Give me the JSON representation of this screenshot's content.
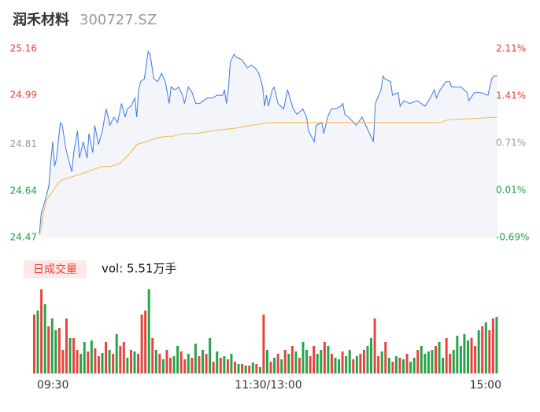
{
  "chart_data": [
    {
      "type": "line",
      "title": "润禾材料",
      "subtitle": "300727.SZ",
      "xlim": [
        0,
        240
      ],
      "xticks": [
        {
          "value": 0,
          "label": "09:30"
        },
        {
          "value": 120,
          "label": "11:30/13:00"
        },
        {
          "value": 240,
          "label": "15:00"
        }
      ],
      "ylim": [
        24.47,
        25.16
      ],
      "yticks": [
        25.16,
        24.99,
        24.81,
        24.64,
        24.47
      ],
      "y2lim": [
        -0.69,
        2.11
      ],
      "y2ticks": [
        {
          "value": 2.11,
          "label": "2.11%"
        },
        {
          "value": 1.41,
          "label": "1.41%"
        },
        {
          "value": 0.71,
          "label": "0.71%"
        },
        {
          "value": 0.01,
          "label": "0.01%"
        },
        {
          "value": -0.69,
          "label": "-0.69%"
        }
      ],
      "tick_colors": [
        "#e8433b",
        "#e8433b",
        "#999999",
        "#1f9e45",
        "#1f9e45"
      ],
      "area_color": "#f3f5fb",
      "series": [
        {
          "color": "#3c78e2",
          "x": [
            0,
            1,
            2,
            4,
            5,
            6,
            7,
            8,
            9,
            11,
            12,
            14,
            17,
            18,
            20,
            21,
            23,
            25,
            26,
            28,
            29,
            31,
            33,
            35,
            37,
            39,
            41,
            43,
            45,
            46,
            48,
            50,
            51,
            52,
            53,
            55,
            57,
            58,
            60,
            62,
            64,
            66,
            68,
            69,
            71,
            73,
            75,
            76,
            78,
            80,
            82,
            84,
            86,
            88,
            90,
            91,
            93,
            96,
            97,
            98,
            99,
            100,
            102,
            103,
            106,
            109,
            111,
            113,
            115,
            117,
            118,
            119,
            120,
            122,
            123,
            125,
            128,
            130,
            133,
            135,
            138,
            140,
            141,
            144,
            145,
            148,
            149,
            151,
            153,
            155,
            158,
            159,
            160,
            162,
            166,
            169,
            171,
            175,
            176,
            179,
            180,
            181,
            184,
            185,
            188,
            189,
            191,
            194,
            198,
            202,
            204,
            207,
            208,
            210,
            213,
            215,
            216,
            219,
            221,
            224,
            225,
            228,
            231,
            235,
            237,
            238,
            240
          ],
          "values": [
            24.48,
            24.56,
            24.58,
            24.63,
            24.66,
            24.75,
            24.82,
            24.73,
            24.76,
            24.89,
            24.88,
            24.79,
            24.71,
            24.78,
            24.86,
            24.76,
            24.82,
            24.76,
            24.85,
            24.78,
            24.88,
            24.81,
            24.86,
            24.94,
            24.88,
            24.91,
            24.89,
            24.96,
            24.91,
            24.94,
            24.95,
            24.98,
            24.91,
            25.01,
            25.04,
            25.05,
            25.15,
            25.14,
            25.05,
            25.04,
            25.07,
            25.04,
            24.96,
            25.02,
            25.01,
            25.02,
            24.99,
            24.96,
            25.02,
            25.0,
            24.96,
            24.96,
            24.97,
            24.98,
            24.98,
            24.98,
            24.99,
            24.99,
            25.01,
            24.96,
            25.01,
            25.11,
            25.14,
            25.13,
            25.12,
            25.09,
            25.1,
            25.09,
            25.07,
            25.02,
            24.95,
            24.99,
            24.95,
            25.01,
            25.02,
            24.96,
            24.94,
            25.01,
            24.94,
            24.92,
            24.94,
            24.91,
            24.86,
            24.82,
            24.88,
            24.89,
            24.85,
            24.91,
            24.94,
            24.94,
            24.95,
            24.96,
            24.92,
            24.91,
            24.88,
            24.91,
            24.88,
            24.82,
            24.96,
            25.01,
            25.06,
            25.05,
            25.04,
            24.99,
            25.0,
            24.95,
            24.97,
            24.96,
            24.97,
            24.95,
            24.97,
            25.01,
            24.98,
            25.01,
            25.04,
            25.04,
            25.02,
            25.02,
            25.02,
            25.0,
            24.97,
            25.0,
            25.0,
            24.99,
            25.05,
            25.06,
            25.06
          ]
        },
        {
          "color": "#f5b73b",
          "x": [
            0,
            1,
            2,
            4,
            6,
            8,
            10,
            12,
            16,
            21,
            25,
            29,
            33,
            37,
            42,
            45,
            49,
            51,
            56,
            60,
            66,
            70,
            75,
            82,
            91,
            103,
            111,
            120,
            144,
            173,
            177,
            210,
            214,
            240
          ],
          "values": [
            24.48,
            24.5,
            24.56,
            24.61,
            24.63,
            24.65,
            24.67,
            24.68,
            24.69,
            24.7,
            24.71,
            24.72,
            24.73,
            24.73,
            24.74,
            24.76,
            24.79,
            24.81,
            24.82,
            24.83,
            24.84,
            24.84,
            24.85,
            24.85,
            24.86,
            24.87,
            24.88,
            24.89,
            24.89,
            24.89,
            24.89,
            24.89,
            24.9,
            24.91
          ]
        }
      ]
    },
    {
      "type": "bar",
      "title": "日成交量",
      "subtitle": "vol: 5.51万手",
      "series": [
        {
          "color": "#e8433b",
          "values": [
            75,
            null,
            107,
            null,
            60,
            null,
            null,
            58,
            30,
            70,
            null,
            45,
            30,
            null,
            null,
            28,
            null,
            32,
            22,
            null,
            40,
            null,
            25,
            null,
            35,
            40,
            null,
            30,
            null,
            25,
            75,
            80,
            null,
            45,
            null,
            25,
            null,
            30,
            20,
            null,
            null,
            28,
            18,
            null,
            20,
            null,
            22,
            null,
            25,
            null,
            15,
            null,
            20,
            null,
            18,
            null,
            15,
            null,
            12,
            null,
            10,
            null,
            12,
            null,
            75,
            null,
            15,
            null,
            25,
            null,
            30,
            null,
            35,
            null,
            20,
            null,
            null,
            22,
            35,
            null,
            null,
            40,
            null,
            25,
            null,
            null,
            28,
            null,
            null,
            18,
            null,
            25,
            30,
            null,
            null,
            70,
            22,
            null,
            40,
            null,
            15,
            null,
            20,
            null,
            25,
            null,
            null,
            30,
            null,
            null,
            null,
            null,
            35,
            null,
            null,
            45,
            25,
            null,
            null,
            null,
            null,
            null,
            45,
            35,
            null,
            60,
            null,
            55,
            70,
            null
          ]
        },
        {
          "color": "#24a34a",
          "values": [
            null,
            80,
            null,
            88,
            null,
            70,
            55,
            null,
            null,
            null,
            45,
            null,
            null,
            25,
            40,
            null,
            42,
            null,
            null,
            26,
            null,
            30,
            null,
            50,
            null,
            null,
            20,
            null,
            28,
            null,
            null,
            null,
            107,
            null,
            30,
            null,
            18,
            null,
            null,
            22,
            35,
            null,
            null,
            25,
            null,
            38,
            null,
            30,
            null,
            45,
            null,
            28,
            null,
            22,
            null,
            25,
            null,
            12,
            null,
            10,
            null,
            14,
            null,
            8,
            null,
            30,
            null,
            20,
            null,
            18,
            null,
            25,
            null,
            28,
            null,
            40,
            30,
            null,
            null,
            25,
            30,
            null,
            35,
            null,
            20,
            18,
            null,
            22,
            30,
            null,
            22,
            null,
            null,
            35,
            45,
            null,
            null,
            28,
            null,
            20,
            null,
            22,
            null,
            18,
            null,
            15,
            20,
            null,
            35,
            25,
            28,
            30,
            null,
            40,
            20,
            null,
            null,
            30,
            48,
            35,
            50,
            42,
            null,
            null,
            55,
            null,
            65,
            null,
            null,
            72
          ]
        }
      ]
    }
  ]
}
